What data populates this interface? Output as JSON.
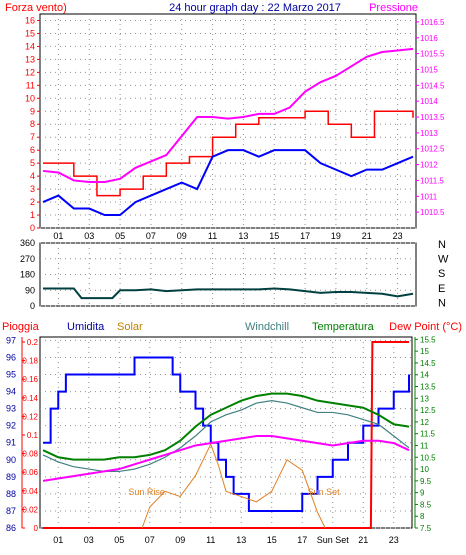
{
  "chart_data": [
    {
      "type": "line",
      "title": "24 hour graph day : 22 Marzo 2017",
      "left_label": "Forza vento)",
      "right_label": "Pressione",
      "x_ticks": [
        "01",
        "03",
        "05",
        "07",
        "09",
        "11",
        "13",
        "15",
        "17",
        "19",
        "21",
        "23"
      ],
      "y_left_ticks": [
        "0",
        "1",
        "2",
        "3",
        "4",
        "5",
        "6",
        "7",
        "8",
        "9",
        "10",
        "11",
        "12",
        "13",
        "14",
        "15",
        "16"
      ],
      "y_left_range": [
        0,
        16.5
      ],
      "y_right_ticks": [
        "1010.5",
        "1011",
        "1011.5",
        "1012",
        "1012.5",
        "1013",
        "1013.5",
        "1014",
        "1014.5",
        "1015",
        "1015.5",
        "1016",
        "1016.5"
      ],
      "y_right_range": [
        1010,
        1016.75
      ],
      "colors": {
        "gust": "#ff0000",
        "wind": "#0000ff",
        "pressure": "#ff00ff"
      },
      "series": [
        {
          "key": "gust",
          "x": [
            0,
            2,
            3.5,
            5,
            6.5,
            8,
            9.5,
            11,
            12.5,
            14,
            15.5,
            17,
            18.5,
            20,
            21.5,
            23,
            24
          ],
          "values": [
            5,
            4,
            2.5,
            3,
            4,
            5,
            5.5,
            7,
            8,
            8.5,
            8.5,
            9,
            8,
            7,
            9,
            9,
            8.5
          ]
        },
        {
          "key": "wind",
          "x": [
            0,
            1,
            2,
            3,
            4,
            5,
            6,
            7,
            8,
            9,
            10,
            11,
            12,
            13,
            14,
            15,
            16,
            17,
            18,
            19,
            20,
            21,
            22,
            23,
            24
          ],
          "values": [
            2,
            2.5,
            1.5,
            1.5,
            1,
            1,
            2,
            2.5,
            3,
            3.5,
            3,
            5.5,
            6,
            6,
            5.5,
            6,
            6,
            6,
            5,
            4.5,
            4,
            4.5,
            4.5,
            5,
            5.5
          ]
        },
        {
          "key": "pressure",
          "x": [
            0,
            1,
            2,
            3,
            4,
            5,
            6,
            7,
            8,
            9,
            10,
            11,
            12,
            13,
            14,
            15,
            16,
            17,
            18,
            19,
            20,
            21,
            22,
            23,
            24
          ],
          "values": [
            1011.8,
            1011.75,
            1011.5,
            1011.45,
            1011.45,
            1011.55,
            1011.9,
            1012.1,
            1012.3,
            1012.9,
            1013.5,
            1013.5,
            1013.45,
            1013.5,
            1013.6,
            1013.6,
            1013.8,
            1014.3,
            1014.6,
            1014.8,
            1015.1,
            1015.4,
            1015.55,
            1015.6,
            1015.65
          ]
        }
      ]
    },
    {
      "type": "line",
      "y_left_ticks": [
        "0",
        "90",
        "180",
        "270",
        "360"
      ],
      "y_left_range": [
        0,
        360
      ],
      "direction_labels": [
        "N",
        "W",
        "S",
        "E",
        "N"
      ],
      "color": "#004040",
      "series": [
        {
          "key": "direction",
          "x": [
            0,
            1,
            2,
            2.5,
            3,
            4,
            4.5,
            5,
            6,
            7,
            8,
            9,
            10,
            11,
            12,
            13,
            14,
            15,
            16,
            17,
            18,
            19,
            20,
            21,
            22,
            23,
            24
          ],
          "values": [
            100,
            100,
            100,
            45,
            45,
            45,
            45,
            90,
            90,
            95,
            85,
            90,
            95,
            95,
            95,
            95,
            95,
            100,
            95,
            85,
            75,
            80,
            80,
            75,
            70,
            55,
            70
          ]
        }
      ]
    },
    {
      "type": "line",
      "legend": [
        "Pioggia",
        "Umidita",
        "Solar",
        "Windchill",
        "Temperatura",
        "Dew Point (°C)"
      ],
      "x_ticks": [
        "01",
        "03",
        "05",
        "07",
        "09",
        "11",
        "13",
        "15",
        "17",
        "Sun Set",
        "21",
        "23"
      ],
      "y_humidity_ticks": [
        "86",
        "87",
        "88",
        "89",
        "90",
        "91",
        "92",
        "93",
        "94",
        "95",
        "96",
        "97"
      ],
      "y_humidity_range": [
        86,
        97.2
      ],
      "y_rain_ticks": [
        "0",
        "0.02",
        "0.04",
        "0.06",
        "0.08",
        "0.1",
        "0.12",
        "0.14",
        "0.16",
        "0.18",
        "0.2"
      ],
      "y_rain_range": [
        0,
        0.2
      ],
      "y_temp_ticks": [
        "7.5",
        "8",
        "8.5",
        "9",
        "9.5",
        "10",
        "10.5",
        "11",
        "11.5",
        "12",
        "12.5",
        "13",
        "13.5",
        "14",
        "14.5",
        "15",
        "15.5"
      ],
      "y_temp_range": [
        7.5,
        15.6
      ],
      "annotations": [
        "Sun Rise",
        "Sun Set"
      ],
      "colors": {
        "rain": "#ff0000",
        "humidity": "#0000ff",
        "solar": "#e08020",
        "windchill": "#408080",
        "temperature": "#008000",
        "dewpoint": "#ff00ff"
      },
      "series": [
        {
          "key": "humidity",
          "x": [
            0,
            0.5,
            1,
            1.5,
            2,
            3,
            4,
            5,
            6,
            7,
            8,
            8.5,
            9,
            10,
            10.5,
            11,
            11.5,
            12,
            12.5,
            13,
            13.5,
            14,
            15,
            16,
            17,
            17.5,
            18,
            19,
            20,
            21,
            22,
            23,
            24
          ],
          "values": [
            91,
            93,
            94,
            95,
            95,
            95,
            95,
            95,
            96,
            96,
            96,
            95,
            94,
            93,
            92,
            91,
            90,
            89,
            88,
            88,
            87,
            87,
            87,
            87,
            88,
            88,
            89,
            90,
            91,
            92,
            93,
            94,
            95
          ]
        },
        {
          "key": "rain",
          "x": [
            0,
            21.5,
            21.6,
            24
          ],
          "values": [
            0,
            0,
            0.2,
            0.2
          ]
        },
        {
          "key": "solar",
          "x": [
            6.5,
            7,
            8,
            9,
            10,
            11,
            11.5,
            12,
            13,
            14,
            15,
            16,
            17,
            18,
            18.5
          ],
          "values": [
            0,
            4,
            7,
            6,
            10,
            16,
            12,
            7,
            6,
            5,
            7,
            13,
            11,
            3,
            0
          ]
        },
        {
          "key": "temperature",
          "x": [
            0,
            1,
            2,
            3,
            4,
            5,
            6,
            7,
            8,
            9,
            10,
            11,
            12,
            13,
            14,
            15,
            16,
            17,
            18,
            19,
            20,
            21,
            22,
            23,
            24
          ],
          "values": [
            10.8,
            10.5,
            10.4,
            10.4,
            10.4,
            10.5,
            10.5,
            10.6,
            10.8,
            11.2,
            11.8,
            12.3,
            12.6,
            12.9,
            13.1,
            13.2,
            13.2,
            13.1,
            12.9,
            12.8,
            12.7,
            12.6,
            12.3,
            11.9,
            11.8
          ]
        },
        {
          "key": "windchill",
          "x": [
            0,
            1,
            2,
            3,
            4,
            5,
            6,
            7,
            8,
            9,
            10,
            11,
            12,
            13,
            14,
            15,
            16,
            17,
            18,
            19,
            20,
            21,
            22,
            23,
            24
          ],
          "values": [
            10.6,
            10.3,
            10.1,
            10.0,
            9.9,
            9.9,
            10.0,
            10.2,
            10.5,
            10.9,
            11.4,
            12.0,
            12.3,
            12.5,
            12.8,
            12.9,
            12.8,
            12.6,
            12.4,
            12.4,
            12.3,
            12.1,
            11.9,
            11.4,
            10.9
          ]
        },
        {
          "key": "dewpoint",
          "x": [
            0,
            1,
            2,
            3,
            4,
            5,
            6,
            7,
            8,
            9,
            10,
            11,
            12,
            13,
            14,
            15,
            16,
            17,
            18,
            19,
            20,
            21,
            22,
            23,
            24
          ],
          "values": [
            9.5,
            9.6,
            9.7,
            9.8,
            9.9,
            10.0,
            10.2,
            10.4,
            10.6,
            10.8,
            11.0,
            11.1,
            11.2,
            11.3,
            11.4,
            11.4,
            11.3,
            11.2,
            11.1,
            11.0,
            11.1,
            11.2,
            11.2,
            11.1,
            10.8
          ]
        }
      ]
    }
  ]
}
